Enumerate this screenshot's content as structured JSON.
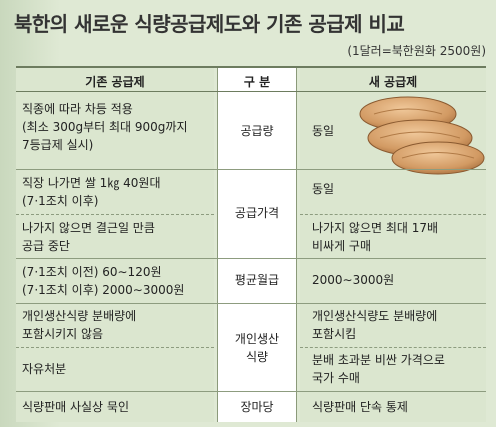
{
  "title": "북한의 새로운 식량공급제도와 기존 공급제 비교",
  "note": "(1달러=북한원화 2500원)",
  "headers": {
    "old": "기존 공급제",
    "category": "구 분",
    "new": "새 공급제"
  },
  "rows": {
    "supply_amount": {
      "label": "공급량",
      "old": [
        "직종에 따라 차등 적용",
        "(최소 300g부터 최대 900g까지",
        "7등급제 실시)"
      ],
      "new": "동일"
    },
    "price": {
      "label": "공급가격",
      "old_a": [
        "직장 나가면 쌀 1㎏ 40원대",
        "(7·1조치 이후)"
      ],
      "new_a": "동일",
      "old_b": [
        "나가지 않으면 결근일 만큼",
        "공급 중단"
      ],
      "new_b": [
        "나가지 않으면 최대 17배",
        "비싸게 구매"
      ]
    },
    "salary": {
      "label": "평균월급",
      "old": [
        "(7·1조치 이전) 60∼120원",
        "(7·1조치 이후) 2000∼3000원"
      ],
      "new": "2000∼3000원"
    },
    "personal_food": {
      "label": [
        "개인생산",
        "식량"
      ],
      "old_a": [
        "개인생산식량 분배량에",
        "포함시키지 않음"
      ],
      "new_a": [
        "개인생산식량도 분배량에",
        "포함시킴"
      ],
      "old_b": "자유처분",
      "new_b": [
        "분배 초과분 비싼 가격으로",
        "국가 수매"
      ]
    },
    "market": {
      "label": "장마당",
      "old": "식량판매 사실상 묵인",
      "new": "식량판매 단속 통제"
    }
  },
  "colors": {
    "background": "#dfe9d4",
    "cell": "#dbe6cf",
    "middle": "#ffffff",
    "bread": "#d9a878"
  }
}
